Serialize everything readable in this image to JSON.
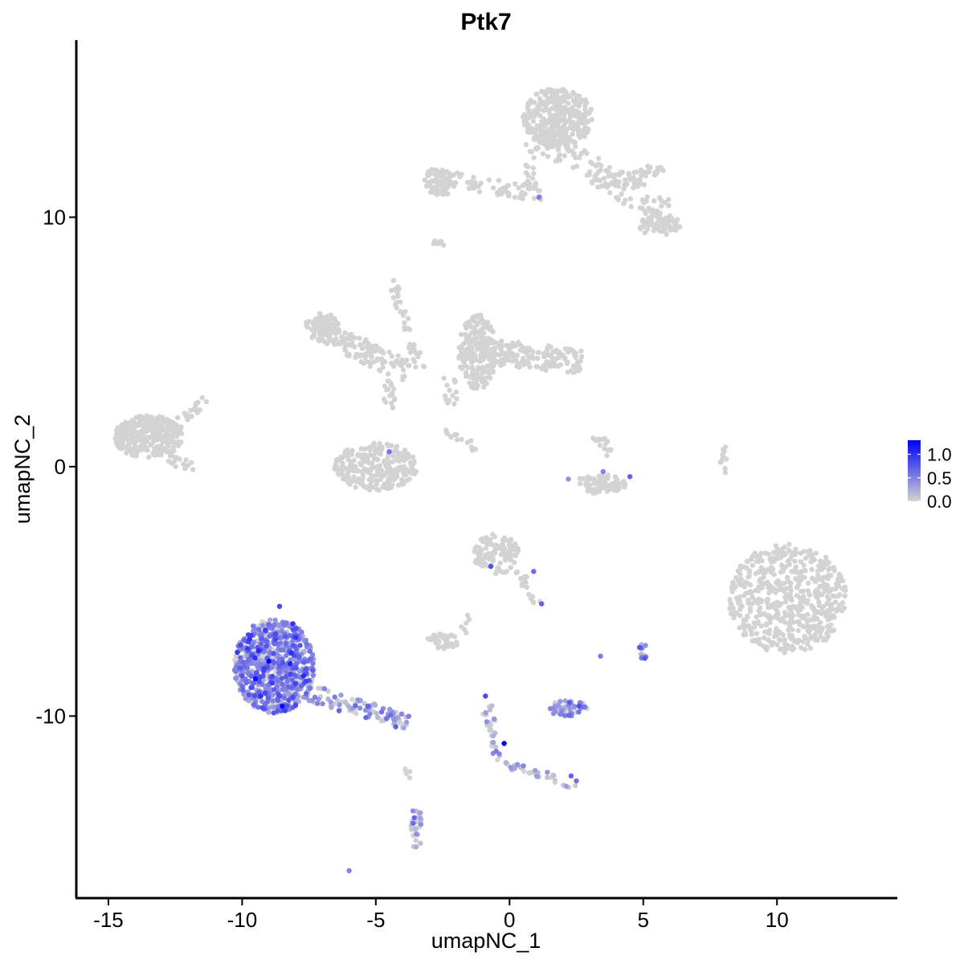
{
  "chart_data": {
    "type": "scatter",
    "title": "Ptk7",
    "xlabel": "umapNC_1",
    "ylabel": "umapNC_2",
    "xlim": [
      -16.2,
      14.5
    ],
    "ylim": [
      -17.3,
      17.1
    ],
    "x_ticks": [
      {
        "value": -15,
        "label": "-15"
      },
      {
        "value": -10,
        "label": "-10"
      },
      {
        "value": -5,
        "label": "-5"
      },
      {
        "value": 0,
        "label": "0"
      },
      {
        "value": 5,
        "label": "5"
      },
      {
        "value": 10,
        "label": "10"
      }
    ],
    "y_ticks": [
      {
        "value": -10,
        "label": "-10"
      },
      {
        "value": 0,
        "label": "0"
      },
      {
        "value": 10,
        "label": "10"
      }
    ],
    "grid": false,
    "legend": {
      "position": "right",
      "type": "continuous color bar",
      "ticks": [
        {
          "value": 1.0,
          "label": "1.0"
        },
        {
          "value": 0.5,
          "label": "0.5"
        },
        {
          "value": 0.0,
          "label": "0.0"
        }
      ],
      "range": [
        0,
        1.3
      ]
    },
    "color_low": "#d3d3d3",
    "color_high": "#0000ff",
    "clusters": [
      {
        "cx": 1.8,
        "cy": 14.0,
        "rx": 1.3,
        "ry": 1.2,
        "n": 360,
        "expr": 0,
        "shape": "ellipse"
      },
      {
        "x1": 1.2,
        "y1": 13.2,
        "x2": 5.8,
        "y2": 10.2,
        "w": 0.55,
        "n": 140,
        "expr": 0,
        "shape": "strand"
      },
      {
        "x1": 4.5,
        "y1": 11.5,
        "x2": 5.8,
        "y2": 12.0,
        "w": 0.3,
        "n": 30,
        "expr": 0,
        "shape": "strand"
      },
      {
        "cx": 5.6,
        "cy": 9.7,
        "rx": 0.8,
        "ry": 0.45,
        "n": 70,
        "expr": 0,
        "shape": "ellipse"
      },
      {
        "x1": 0.8,
        "y1": 13.0,
        "x2": 0.8,
        "y2": 11.0,
        "w": 0.2,
        "n": 18,
        "expr": 0,
        "shape": "strand"
      },
      {
        "x1": -3.2,
        "y1": 11.7,
        "x2": 1.2,
        "y2": 10.9,
        "w": 0.3,
        "n": 75,
        "expr": 0,
        "shape": "strand"
      },
      {
        "cx": -2.6,
        "cy": 11.4,
        "rx": 0.65,
        "ry": 0.55,
        "n": 70,
        "expr": 0,
        "shape": "ellipse"
      },
      {
        "cx": -2.7,
        "cy": 8.9,
        "rx": 0.25,
        "ry": 0.18,
        "n": 8,
        "expr": 0,
        "shape": "ellipse"
      },
      {
        "cx": -7.0,
        "cy": 5.6,
        "rx": 0.65,
        "ry": 0.55,
        "n": 85,
        "expr": 0,
        "shape": "ellipse"
      },
      {
        "x1": -7.0,
        "y1": 5.4,
        "x2": -3.8,
        "y2": 3.8,
        "w": 0.45,
        "n": 130,
        "expr": 0,
        "shape": "strand"
      },
      {
        "x1": -4.4,
        "y1": 7.5,
        "x2": -3.3,
        "y2": 3.9,
        "w": 0.2,
        "n": 40,
        "expr": 0,
        "shape": "strand"
      },
      {
        "x1": -4.5,
        "y1": 3.5,
        "x2": -4.5,
        "y2": 2.0,
        "w": 0.2,
        "n": 18,
        "expr": 0,
        "shape": "strand"
      },
      {
        "cx": -5.0,
        "cy": 0.0,
        "rx": 1.55,
        "ry": 0.95,
        "n": 260,
        "expr": 0,
        "shape": "ellipse"
      },
      {
        "cx": -13.5,
        "cy": 1.2,
        "rx": 1.3,
        "ry": 0.85,
        "n": 300,
        "expr": 0,
        "shape": "ellipse"
      },
      {
        "x1": -12.5,
        "y1": 1.6,
        "x2": -11.3,
        "y2": 2.7,
        "w": 0.22,
        "n": 20,
        "expr": 0,
        "shape": "strand"
      },
      {
        "x1": -12.8,
        "y1": 0.3,
        "x2": -11.8,
        "y2": 0.0,
        "w": 0.2,
        "n": 15,
        "expr": 0,
        "shape": "strand"
      },
      {
        "cx": -1.2,
        "cy": 4.6,
        "rx": 0.7,
        "ry": 1.5,
        "n": 220,
        "expr": 0,
        "shape": "ellipse"
      },
      {
        "x1": -0.6,
        "y1": 4.6,
        "x2": 2.7,
        "y2": 4.2,
        "w": 0.5,
        "n": 170,
        "expr": 0,
        "shape": "strand"
      },
      {
        "x1": -2.3,
        "y1": 3.6,
        "x2": -2.1,
        "y2": 2.5,
        "w": 0.25,
        "n": 14,
        "expr": 0,
        "shape": "strand"
      },
      {
        "x1": -2.4,
        "y1": 1.5,
        "x2": -1.2,
        "y2": 0.7,
        "w": 0.15,
        "n": 15,
        "expr": 0,
        "shape": "strand"
      },
      {
        "x1": 3.2,
        "y1": 1.3,
        "x2": 3.8,
        "y2": 0.5,
        "w": 0.2,
        "n": 15,
        "expr": 0,
        "shape": "strand"
      },
      {
        "cx": 3.4,
        "cy": -0.7,
        "rx": 0.95,
        "ry": 0.4,
        "n": 75,
        "expr": 0,
        "shape": "ellipse"
      },
      {
        "cx": 8.0,
        "cy": 0.3,
        "rx": 0.15,
        "ry": 0.7,
        "n": 12,
        "expr": 0,
        "shape": "ellipse"
      },
      {
        "cx": 10.4,
        "cy": -5.3,
        "rx": 2.2,
        "ry": 2.2,
        "n": 560,
        "expr": 0,
        "shape": "ellipse"
      },
      {
        "cx": -0.5,
        "cy": -3.5,
        "rx": 0.85,
        "ry": 0.8,
        "n": 110,
        "expr": 0,
        "shape": "ellipse"
      },
      {
        "x1": 0.3,
        "y1": -4.2,
        "x2": 1.2,
        "y2": -5.6,
        "w": 0.2,
        "n": 18,
        "expr": 0,
        "shape": "strand"
      },
      {
        "cx": -2.5,
        "cy": -7.0,
        "rx": 0.6,
        "ry": 0.3,
        "n": 45,
        "expr": 0,
        "shape": "ellipse"
      },
      {
        "x1": -1.8,
        "y1": -6.7,
        "x2": -1.4,
        "y2": -5.8,
        "w": 0.15,
        "n": 6,
        "expr": 0,
        "shape": "strand"
      },
      {
        "cx": -8.8,
        "cy": -8.0,
        "rx": 1.5,
        "ry": 1.9,
        "n": 720,
        "expr": 0.45,
        "shape": "ellipse"
      },
      {
        "x1": -7.6,
        "y1": -9.0,
        "x2": -3.8,
        "y2": -10.3,
        "w": 0.35,
        "n": 100,
        "expr": 0.25,
        "shape": "strand"
      },
      {
        "cx": 2.2,
        "cy": -9.7,
        "rx": 0.75,
        "ry": 0.32,
        "n": 55,
        "expr": 0.35,
        "shape": "ellipse"
      },
      {
        "cx": 5.0,
        "cy": -7.4,
        "rx": 0.18,
        "ry": 0.35,
        "n": 12,
        "expr": 0.45,
        "shape": "ellipse"
      },
      {
        "x1": -0.9,
        "y1": -9.4,
        "x2": -0.4,
        "y2": -11.8,
        "w": 0.2,
        "n": 28,
        "expr": 0.15,
        "shape": "strand"
      },
      {
        "x1": -0.4,
        "y1": -11.8,
        "x2": 2.6,
        "y2": -12.8,
        "w": 0.18,
        "n": 32,
        "expr": 0.1,
        "shape": "strand"
      },
      {
        "x1": -3.5,
        "y1": -13.8,
        "x2": -3.5,
        "y2": -15.3,
        "w": 0.2,
        "n": 28,
        "expr": 0.15,
        "shape": "strand"
      },
      {
        "x1": -3.8,
        "y1": -11.8,
        "x2": -3.8,
        "y2": -12.7,
        "w": 0.1,
        "n": 5,
        "expr": 0,
        "shape": "strand"
      }
    ],
    "highlighted_points": [
      {
        "x": 1.1,
        "y": 10.8,
        "v": 0.55
      },
      {
        "x": -4.5,
        "y": 0.6,
        "v": 0.6
      },
      {
        "x": 3.5,
        "y": -0.2,
        "v": 0.5
      },
      {
        "x": 4.5,
        "y": -0.4,
        "v": 0.7
      },
      {
        "x": 2.2,
        "y": -0.5,
        "v": 0.4
      },
      {
        "x": -0.7,
        "y": -4.0,
        "v": 0.8
      },
      {
        "x": 0.9,
        "y": -4.2,
        "v": 0.65
      },
      {
        "x": 1.2,
        "y": -5.5,
        "v": 0.7
      },
      {
        "x": -0.9,
        "y": -9.2,
        "v": 0.85
      },
      {
        "x": -0.2,
        "y": -11.1,
        "v": 1.3
      },
      {
        "x": 3.4,
        "y": -7.6,
        "v": 0.55
      },
      {
        "x": 2.3,
        "y": -12.4,
        "v": 0.7
      },
      {
        "x": 2.5,
        "y": -12.6,
        "v": 0.6
      },
      {
        "x": -6.0,
        "y": -16.2,
        "v": 0.5
      },
      {
        "x": -9.0,
        "y": -7.8,
        "v": 1.3
      },
      {
        "x": -9.5,
        "y": -8.5,
        "v": 1.2
      },
      {
        "x": -8.2,
        "y": -7.9,
        "v": 1.1
      },
      {
        "x": -8.5,
        "y": -9.6,
        "v": 1.25
      },
      {
        "x": -9.3,
        "y": -9.2,
        "v": 1.0
      },
      {
        "x": -9.8,
        "y": -7.3,
        "v": 0.95
      },
      {
        "x": -8.1,
        "y": -6.3,
        "v": 1.0
      },
      {
        "x": -7.6,
        "y": -8.6,
        "v": 0.9
      },
      {
        "x": -8.6,
        "y": -5.6,
        "v": 0.85
      },
      {
        "x": -5.3,
        "y": -9.6,
        "v": 0.7
      },
      {
        "x": -4.6,
        "y": -10.1,
        "v": 0.6
      },
      {
        "x": 2.6,
        "y": -9.6,
        "v": 0.8
      }
    ]
  }
}
